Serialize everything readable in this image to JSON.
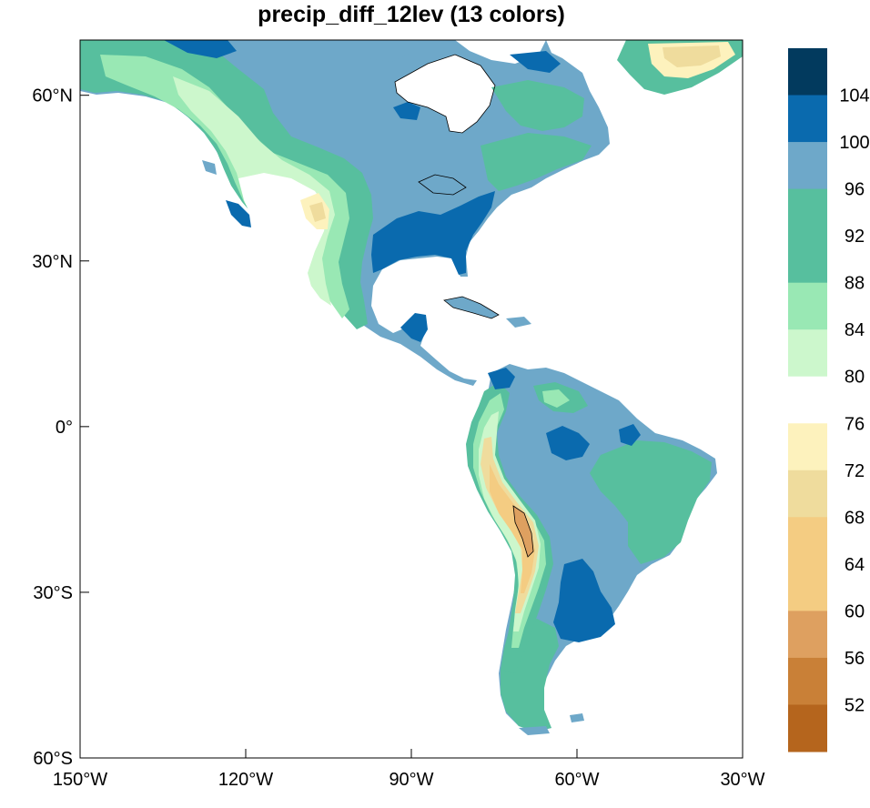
{
  "title": "precip_diff_12lev (13 colors)",
  "map": {
    "lon_range": [
      -150,
      -30
    ],
    "lat_range": [
      -60,
      70
    ],
    "x_ticks": [
      {
        "lon": -150,
        "label": "150°W"
      },
      {
        "lon": -120,
        "label": "120°W"
      },
      {
        "lon": -90,
        "label": "90°W"
      },
      {
        "lon": -60,
        "label": "60°W"
      },
      {
        "lon": -30,
        "label": "30°W"
      }
    ],
    "y_ticks": [
      {
        "lat": 60,
        "label": "60°N"
      },
      {
        "lat": 30,
        "label": "30°N"
      },
      {
        "lat": 0,
        "label": "0°"
      },
      {
        "lat": -30,
        "label": "30°S"
      },
      {
        "lat": -60,
        "label": "60°S"
      }
    ],
    "ocean_color": "#ffffff"
  },
  "colorbar": {
    "levels": [
      "52",
      "56",
      "60",
      "64",
      "68",
      "72",
      "76",
      "80",
      "84",
      "88",
      "92",
      "96",
      "100",
      "104"
    ],
    "colors": [
      "#b5651d",
      "#c98037",
      "#dea060",
      "#f4cc82",
      "#f4cc82",
      "#efdc9d",
      "#fdf2bd",
      "#ffffff",
      "#ccf7cc",
      "#99e8b4",
      "#57bf9e",
      "#57bf9e",
      "#6ea8c9",
      "#0a6aae",
      "#023a5e"
    ]
  }
}
